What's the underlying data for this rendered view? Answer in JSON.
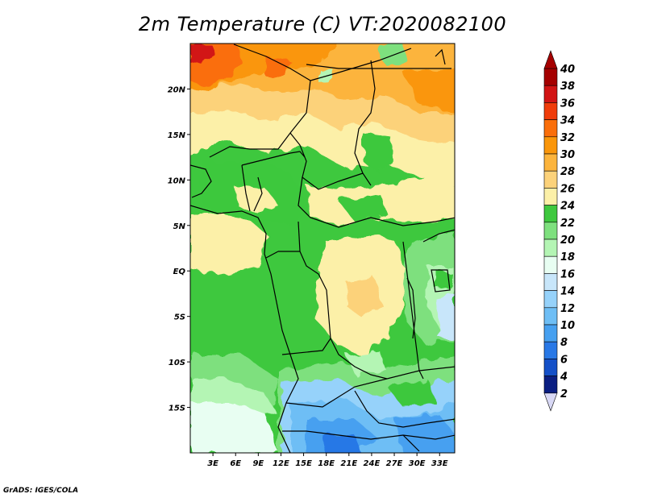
{
  "title": "2m Temperature (C) VT:2020082100",
  "credit": "GrADS: IGES/COLA",
  "map": {
    "lon_range": [
      0,
      35
    ],
    "lat_range": [
      -20,
      25
    ],
    "x_ticks": [
      {
        "lon": 3,
        "label": "3E"
      },
      {
        "lon": 6,
        "label": "6E"
      },
      {
        "lon": 9,
        "label": "9E"
      },
      {
        "lon": 12,
        "label": "12E"
      },
      {
        "lon": 15,
        "label": "15E"
      },
      {
        "lon": 18,
        "label": "18E"
      },
      {
        "lon": 21,
        "label": "21E"
      },
      {
        "lon": 24,
        "label": "24E"
      },
      {
        "lon": 27,
        "label": "27E"
      },
      {
        "lon": 30,
        "label": "30E"
      },
      {
        "lon": 33,
        "label": "33E"
      }
    ],
    "y_ticks": [
      {
        "lat": 20,
        "label": "20N"
      },
      {
        "lat": 15,
        "label": "15N"
      },
      {
        "lat": 10,
        "label": "10N"
      },
      {
        "lat": 5,
        "label": "5N"
      },
      {
        "lat": 0,
        "label": "EQ"
      },
      {
        "lat": -5,
        "label": "5S"
      },
      {
        "lat": -10,
        "label": "10S"
      },
      {
        "lat": -15,
        "label": "15S"
      }
    ]
  },
  "colorbar": {
    "levels": [
      "40",
      "38",
      "36",
      "34",
      "32",
      "30",
      "28",
      "26",
      "24",
      "22",
      "20",
      "18",
      "16",
      "14",
      "12",
      "10",
      "8",
      "6",
      "4",
      "2"
    ],
    "colors": [
      "#a50000",
      "#d21414",
      "#f03c0a",
      "#fa6e0a",
      "#fa960a",
      "#fcb43c",
      "#fcd27a",
      "#fcf0a8",
      "#3ec83e",
      "#7ee07e",
      "#b4f5b4",
      "#e8fef2",
      "#c8e6fa",
      "#96d2fa",
      "#6ebef5",
      "#46a0f0",
      "#2878e6",
      "#1450c8",
      "#0a1e82",
      "#d8d8f5"
    ]
  }
}
